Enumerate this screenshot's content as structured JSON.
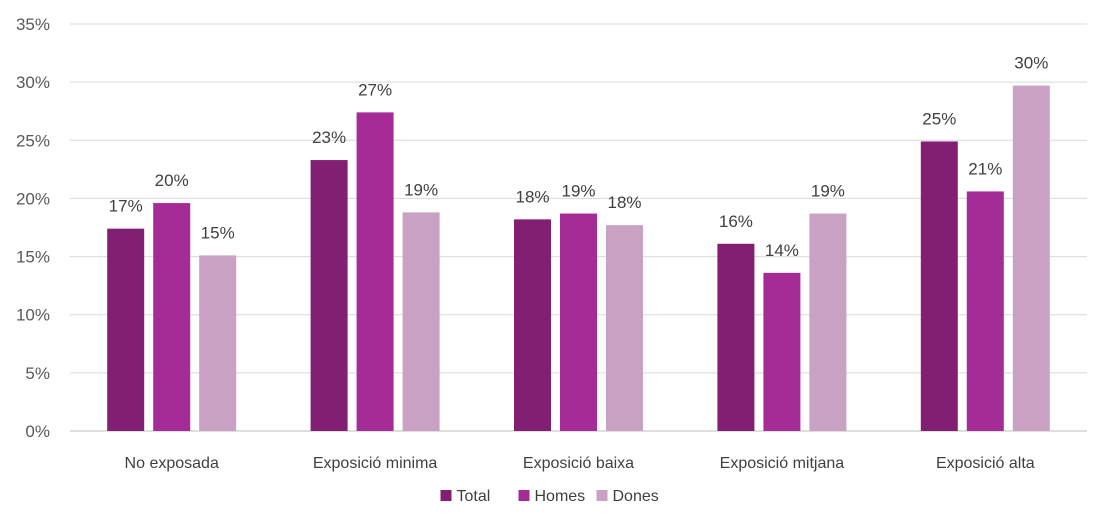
{
  "chart_data": {
    "type": "bar",
    "categories": [
      "No exposada",
      "Exposició minima",
      "Exposició baixa",
      "Exposició mitjana",
      "Exposició alta"
    ],
    "series": [
      {
        "name": "Total",
        "values": [
          17.4,
          23.3,
          18.2,
          16.1,
          24.9
        ],
        "labels": [
          "17%",
          "23%",
          "18%",
          "16%",
          "25%"
        ]
      },
      {
        "name": "Homes",
        "values": [
          19.6,
          27.4,
          18.7,
          13.6,
          20.6
        ],
        "labels": [
          "20%",
          "27%",
          "19%",
          "14%",
          "21%"
        ]
      },
      {
        "name": "Dones",
        "values": [
          15.1,
          18.8,
          17.7,
          18.7,
          29.7
        ],
        "labels": [
          "15%",
          "19%",
          "18%",
          "19%",
          "30%"
        ]
      }
    ],
    "y_ticks": [
      "0%",
      "5%",
      "10%",
      "15%",
      "20%",
      "25%",
      "30%",
      "35%"
    ],
    "ylim": [
      0,
      35
    ],
    "grid": true,
    "legend_position": "bottom",
    "colors": [
      "#831f73",
      "#a52b96",
      "#c8a1c3"
    ]
  }
}
